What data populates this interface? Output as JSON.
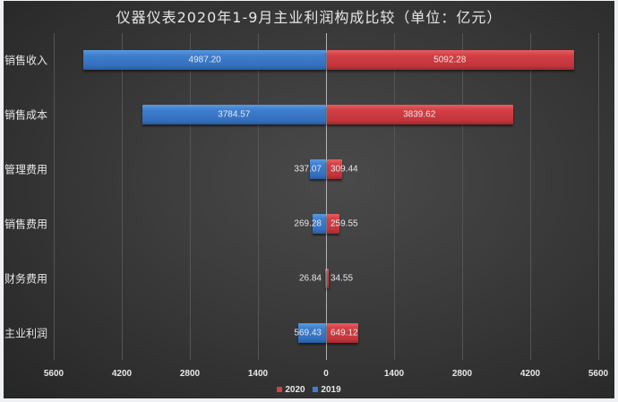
{
  "chart_data": {
    "type": "bar",
    "orientation": "horizontal",
    "layout": "butterfly",
    "title": "仪器仪表2020年1-9月主业利润构成比较（单位：亿元）",
    "categories": [
      "销售收入",
      "销售成本",
      "管理费用",
      "销售费用",
      "财务费用",
      "主业利润"
    ],
    "series": [
      {
        "name": "2019",
        "color": "#3f7fcf",
        "side": "left",
        "values": [
          4987.2,
          3784.57,
          337.07,
          269.28,
          26.84,
          569.43
        ]
      },
      {
        "name": "2020",
        "color": "#d34046",
        "side": "right",
        "values": [
          5092.28,
          3839.62,
          309.44,
          259.55,
          34.55,
          649.12
        ]
      }
    ],
    "value_labels_2019": [
      "4987.20",
      "3784.57",
      "337.07",
      "269.28",
      "26.84",
      "569.43"
    ],
    "value_labels_2020": [
      "5092.28",
      "3839.62",
      "309.44",
      "259.55",
      "34.55",
      "649.12"
    ],
    "xticks": [
      "5600",
      "4200",
      "2800",
      "1400",
      "0",
      "1400",
      "2800",
      "4200",
      "5600"
    ],
    "xlim": [
      -5600,
      5600
    ],
    "xlabel": "",
    "ylabel": "",
    "grid": true,
    "legend": {
      "position": "bottom",
      "entries": [
        "2020",
        "2019"
      ]
    }
  }
}
